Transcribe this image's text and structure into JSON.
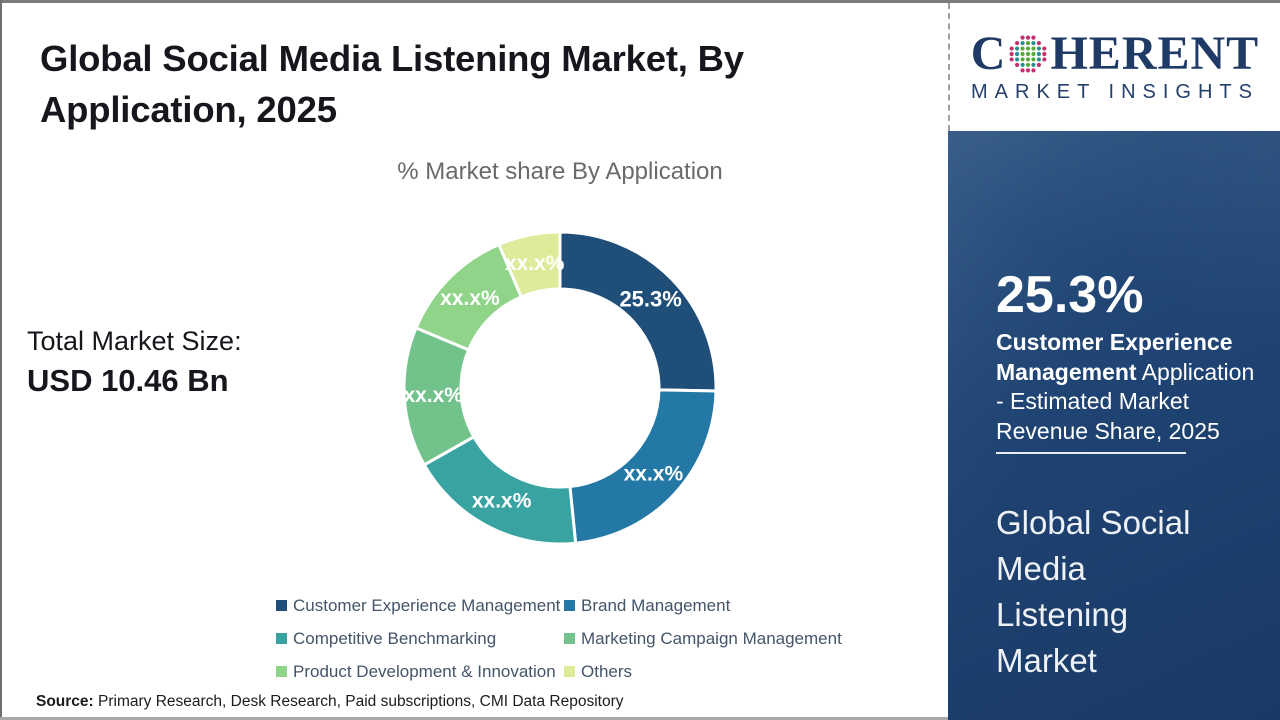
{
  "title": {
    "lines": [
      "Global Social Media Listening Market, By",
      "Application, 2025"
    ]
  },
  "total_market": {
    "label": "Total Market Size:",
    "value": "USD 10.46 Bn"
  },
  "source": {
    "prefix": "Source:",
    "text": " Primary Research, Desk Research, Paid subscriptions, CMI Data Repository"
  },
  "logo": {
    "word_start": "C",
    "word_end": "HERENT",
    "subtitle": "MARKET INSIGHTS"
  },
  "panel": {
    "share_value": "25.3%",
    "line1_bold": "Customer Experience",
    "line2_bold": "Management",
    "line2_rest": " Application",
    "line3": "- Estimated Market",
    "line4": "Revenue Share, 2025",
    "market_line1": "Global Social",
    "market_line2": "Media",
    "market_line3": "Listening",
    "market_line4": "Market"
  },
  "chart_data": {
    "type": "donut",
    "title": "% Market share By Application",
    "start_angle_deg": 0,
    "clockwise": true,
    "segments": [
      {
        "label": "Customer Experience Management",
        "value": 25.3,
        "display": "25.3%",
        "color": "#1f4e78"
      },
      {
        "label": "Brand Management",
        "value": 23.1,
        "display": "xx.x%",
        "color": "#2478a6"
      },
      {
        "label": "Competitive Benchmarking",
        "value": 18.4,
        "display": "xx.x%",
        "color": "#38a3a1"
      },
      {
        "label": "Marketing Campaign Management",
        "value": 14.5,
        "display": "xx.x%",
        "color": "#72c28c"
      },
      {
        "label": "Product Development & Innovation",
        "value": 12.3,
        "display": "xx.x%",
        "color": "#90d48a"
      },
      {
        "label": "Others",
        "value": 6.4,
        "display": "xx.x%",
        "color": "#dcec9a"
      }
    ]
  },
  "colors": {
    "panel_bg": "#1e4271",
    "logo_navy": "#203a66",
    "globe_teal": "#2a8f8f",
    "globe_green": "#58a83c",
    "globe_crimson": "#c42f6d"
  }
}
